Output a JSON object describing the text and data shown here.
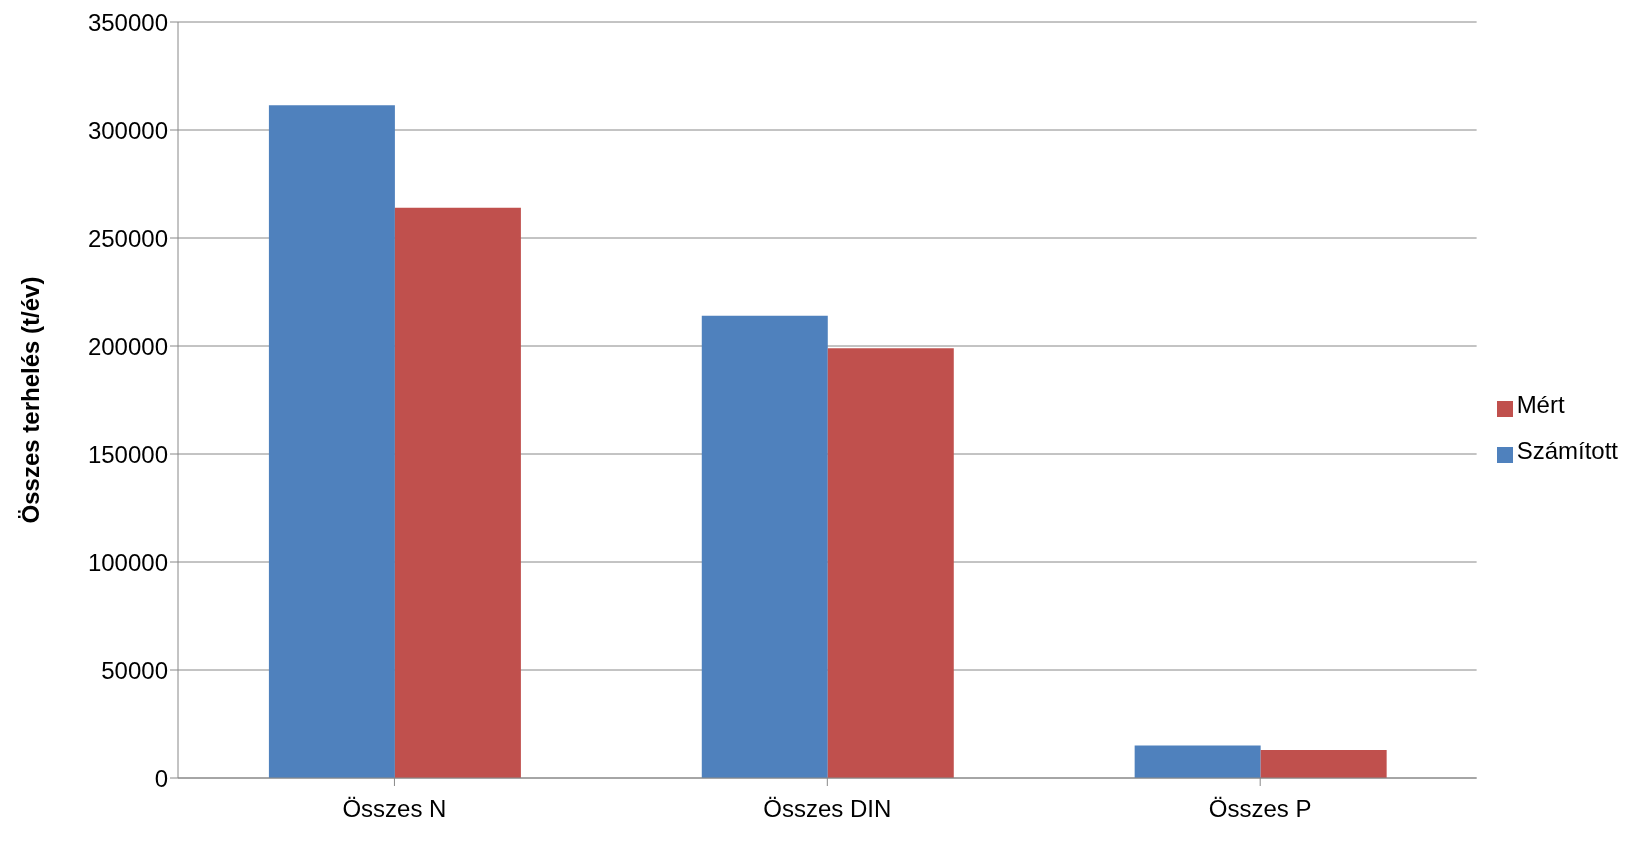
{
  "chart_data": {
    "type": "bar",
    "ylabel": "Összes terhelés (t/év)",
    "categories": [
      "Összes N",
      "Összes DIN",
      "Összes P"
    ],
    "series": [
      {
        "name": "Számított",
        "color": "#4f81bd",
        "values": [
          311500,
          214000,
          15000
        ]
      },
      {
        "name": "Mért",
        "color": "#c0504d",
        "values": [
          264000,
          199000,
          13000
        ]
      }
    ],
    "ylim": [
      0,
      350000
    ],
    "yticks": [
      0,
      50000,
      100000,
      150000,
      200000,
      250000,
      300000,
      350000
    ],
    "grid": "y",
    "legend": "right"
  }
}
